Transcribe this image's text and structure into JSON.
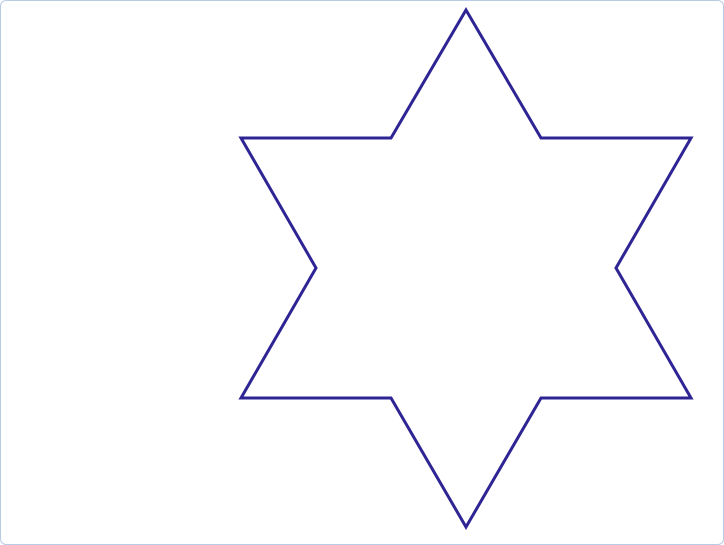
{
  "canvas": {
    "background_color": "#ffffff",
    "border_color": "#b9cbe6"
  },
  "drawing": {
    "shape": "six-pointed star",
    "stroke_color": "#2e2494",
    "fill": "none"
  }
}
